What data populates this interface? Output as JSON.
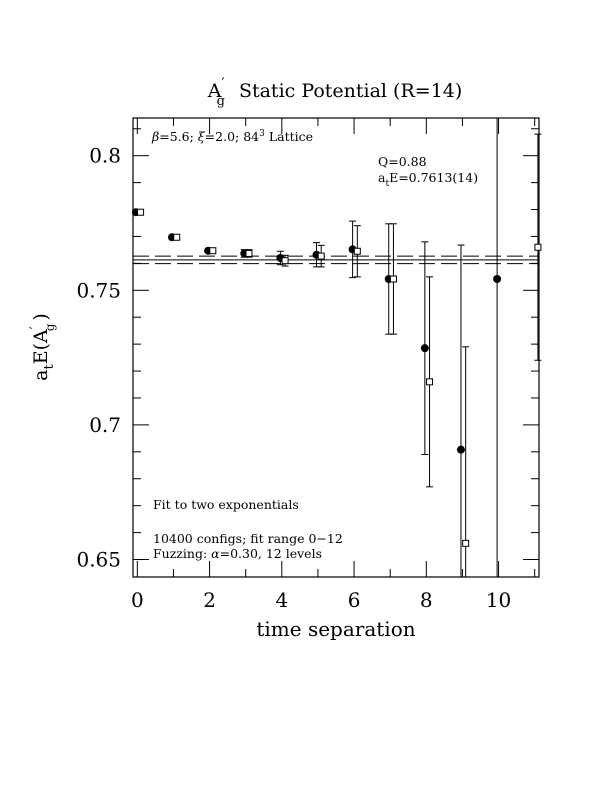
{
  "chart_data": {
    "type": "scatter",
    "title_main": "A",
    "title_prime": "′",
    "title_sub": "g",
    "title_rest": "Static Potential (R=14)",
    "xlabel": "time separation",
    "ylabel_main": "a",
    "ylabel_sub1": "t",
    "ylabel_mid": "E(A",
    "ylabel_prime": "′",
    "ylabel_sub2": "g",
    "ylabel_end": ")",
    "xlim": [
      -0.12,
      11.12
    ],
    "ylim": [
      0.6435,
      0.814
    ],
    "xticks": [
      0,
      2,
      4,
      6,
      8,
      10
    ],
    "yticks": [
      0.65,
      0.7,
      0.75,
      0.8
    ],
    "xtick_labels": [
      "0",
      "2",
      "4",
      "6",
      "8",
      "10"
    ],
    "ytick_labels": [
      "0.65",
      "0.7",
      "0.75",
      "0.8"
    ],
    "annotations": {
      "params_beta": "β",
      "params_mid": "=5.6; ",
      "params_xi": "ξ",
      "params_lat": "=2.0; 84",
      "params_sup": "3",
      "params_end": " Lattice",
      "q_value": "Q=0.88",
      "fit_a": "a",
      "fit_sub": "t",
      "fit_rest": "E=0.7613(14)",
      "fit_method": "Fit to two exponentials",
      "configs": "10400 configs; fit range 0−12",
      "fuzz_a": "Fuzzing: ",
      "fuzz_alpha": "α",
      "fuzz_b": "=0.30, 12 levels"
    },
    "fit_band": {
      "center": 0.7613,
      "error": 0.0014
    },
    "series": [
      {
        "marker": "filled-circle",
        "x": [
          0,
          1,
          2,
          3,
          4,
          5,
          6,
          7,
          8,
          9,
          10
        ],
        "y": [
          0.779,
          0.7697,
          0.7647,
          0.7637,
          0.762,
          0.7632,
          0.7652,
          0.7542,
          0.7285,
          0.6908,
          0.7542
        ],
        "err": [
          0.0005,
          0.0007,
          0.001,
          0.0014,
          0.0025,
          0.0045,
          0.0105,
          0.0205,
          0.0395,
          0.076,
          0.2
        ]
      },
      {
        "marker": "open-square",
        "x": [
          0,
          1,
          2,
          3,
          4,
          5,
          6,
          7,
          8,
          9,
          11
        ],
        "y": [
          0.779,
          0.7697,
          0.7647,
          0.7637,
          0.761,
          0.7627,
          0.7645,
          0.7542,
          0.716,
          0.656,
          0.766
        ],
        "err": [
          0.0005,
          0.0007,
          0.001,
          0.0014,
          0.002,
          0.004,
          0.0095,
          0.0205,
          0.039,
          0.073,
          0.042
        ]
      }
    ]
  }
}
